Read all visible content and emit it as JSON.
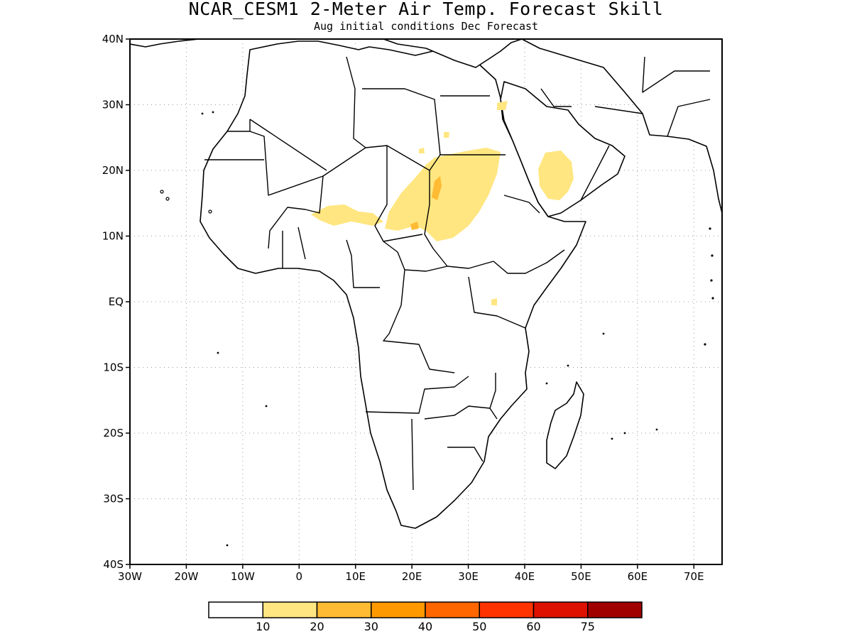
{
  "header": {
    "title": "NCAR_CESM1 2-Meter Air Temp. Forecast Skill",
    "subtitle": "Aug initial conditions  Dec Forecast"
  },
  "map": {
    "lon_range": [
      -30,
      75
    ],
    "lat_range": [
      -40,
      40
    ],
    "lat_ticks": [
      {
        "value": 40,
        "label": "40N"
      },
      {
        "value": 30,
        "label": "30N"
      },
      {
        "value": 20,
        "label": "20N"
      },
      {
        "value": 10,
        "label": "10N"
      },
      {
        "value": 0,
        "label": "EQ"
      },
      {
        "value": -10,
        "label": "10S"
      },
      {
        "value": -20,
        "label": "20S"
      },
      {
        "value": -30,
        "label": "30S"
      },
      {
        "value": -40,
        "label": "40S"
      }
    ],
    "lon_ticks": [
      {
        "value": -30,
        "label": "30W"
      },
      {
        "value": -20,
        "label": "20W"
      },
      {
        "value": -10,
        "label": "10W"
      },
      {
        "value": 0,
        "label": "0"
      },
      {
        "value": 10,
        "label": "10E"
      },
      {
        "value": 20,
        "label": "20E"
      },
      {
        "value": 30,
        "label": "30E"
      },
      {
        "value": 40,
        "label": "40E"
      },
      {
        "value": 50,
        "label": "50E"
      },
      {
        "value": 60,
        "label": "60E"
      },
      {
        "value": 70,
        "label": "70E"
      }
    ],
    "grid": true,
    "colors": {
      "frame": "#000000",
      "grid": "#9a9a9a"
    }
  },
  "colorbar": {
    "colors": [
      "#ffffff",
      "#ffe680",
      "#ffbb33",
      "#ff9900",
      "#ff6600",
      "#ff3300",
      "#dd1100",
      "#a00000"
    ],
    "labels": [
      "10",
      "20",
      "30",
      "40",
      "50",
      "60",
      "75"
    ]
  }
}
